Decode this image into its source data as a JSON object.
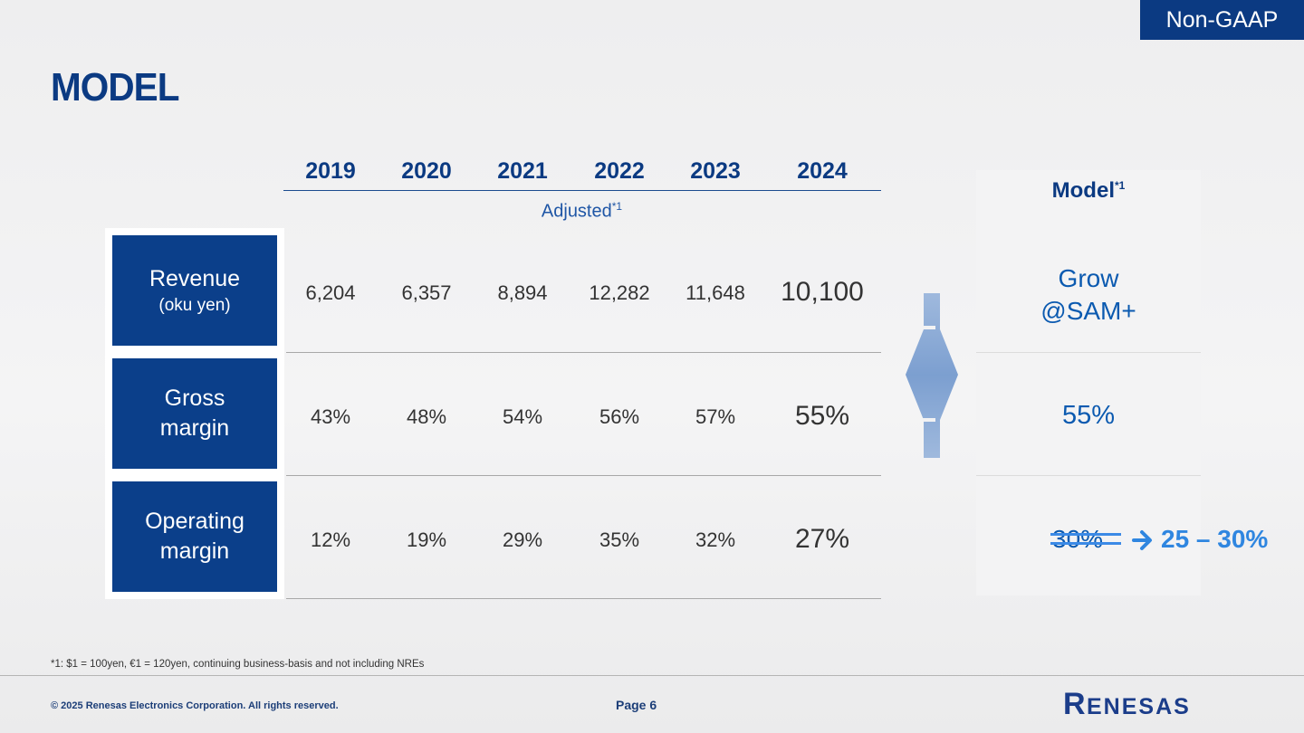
{
  "badge": "Non-GAAP",
  "title": "MODEL",
  "years": [
    "2019",
    "2020",
    "2021",
    "2022",
    "2023",
    "2024"
  ],
  "adjusted": {
    "label": "Adjusted",
    "sup": "*1"
  },
  "rows": [
    {
      "label": "Revenue",
      "sub": "(oku yen)",
      "values": [
        "6,204",
        "6,357",
        "8,894",
        "12,282",
        "11,648",
        "10,100"
      ]
    },
    {
      "label_line1": "Gross",
      "label_line2": "margin",
      "values": [
        "43%",
        "48%",
        "54%",
        "56%",
        "57%",
        "55%"
      ]
    },
    {
      "label_line1": "Operating",
      "label_line2": "margin",
      "values": [
        "12%",
        "19%",
        "29%",
        "35%",
        "32%",
        "27%"
      ]
    }
  ],
  "model": {
    "header": "Model",
    "header_sup": "*1",
    "revenue_line1": "Grow",
    "revenue_line2": "@SAM+",
    "gross_margin": "55%",
    "operating_old": "30%",
    "operating_new": "25 – 30%"
  },
  "footnote": "*1: $1 = 100yen, €1 = 120yen, continuing business-basis and not including NREs",
  "footer": {
    "copyright": "© 2025 Renesas Electronics Corporation. All rights reserved.",
    "page": "Page 6",
    "logo_text": "RENESAS"
  },
  "colors": {
    "brand": "#0b3a82",
    "accent": "#2f86e0",
    "label_bg": "#0b3f8a"
  }
}
